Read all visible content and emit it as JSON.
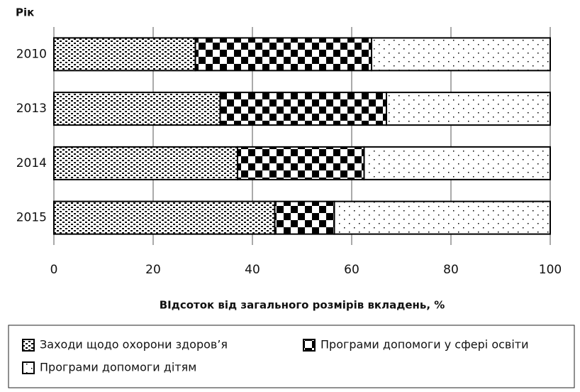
{
  "chart_data": {
    "type": "stacked_barh",
    "y_label": "Рік",
    "x_label": "ВІдсоток від загального розмірів вкладень, %",
    "categories": [
      "2010",
      "2013",
      "2014",
      "2015"
    ],
    "series": [
      {
        "name": "Заходи  щодо охорони здоров’я",
        "color": "#000000",
        "pattern": "dense",
        "values": [
          28.5,
          33.5,
          37,
          44.5
        ]
      },
      {
        "name": "Програми допомоги у сфері освіти",
        "color": "#000000",
        "pattern": "checker",
        "values": [
          35.5,
          33.5,
          25.5,
          12
        ]
      },
      {
        "name": "Програми допомоги дітям",
        "color": "#000000",
        "pattern": "sparse",
        "values": [
          36,
          33,
          37.5,
          43.5
        ]
      }
    ],
    "xlim": [
      0,
      100
    ],
    "xticks": [
      0,
      20,
      40,
      60,
      80,
      100
    ],
    "grid": true
  }
}
